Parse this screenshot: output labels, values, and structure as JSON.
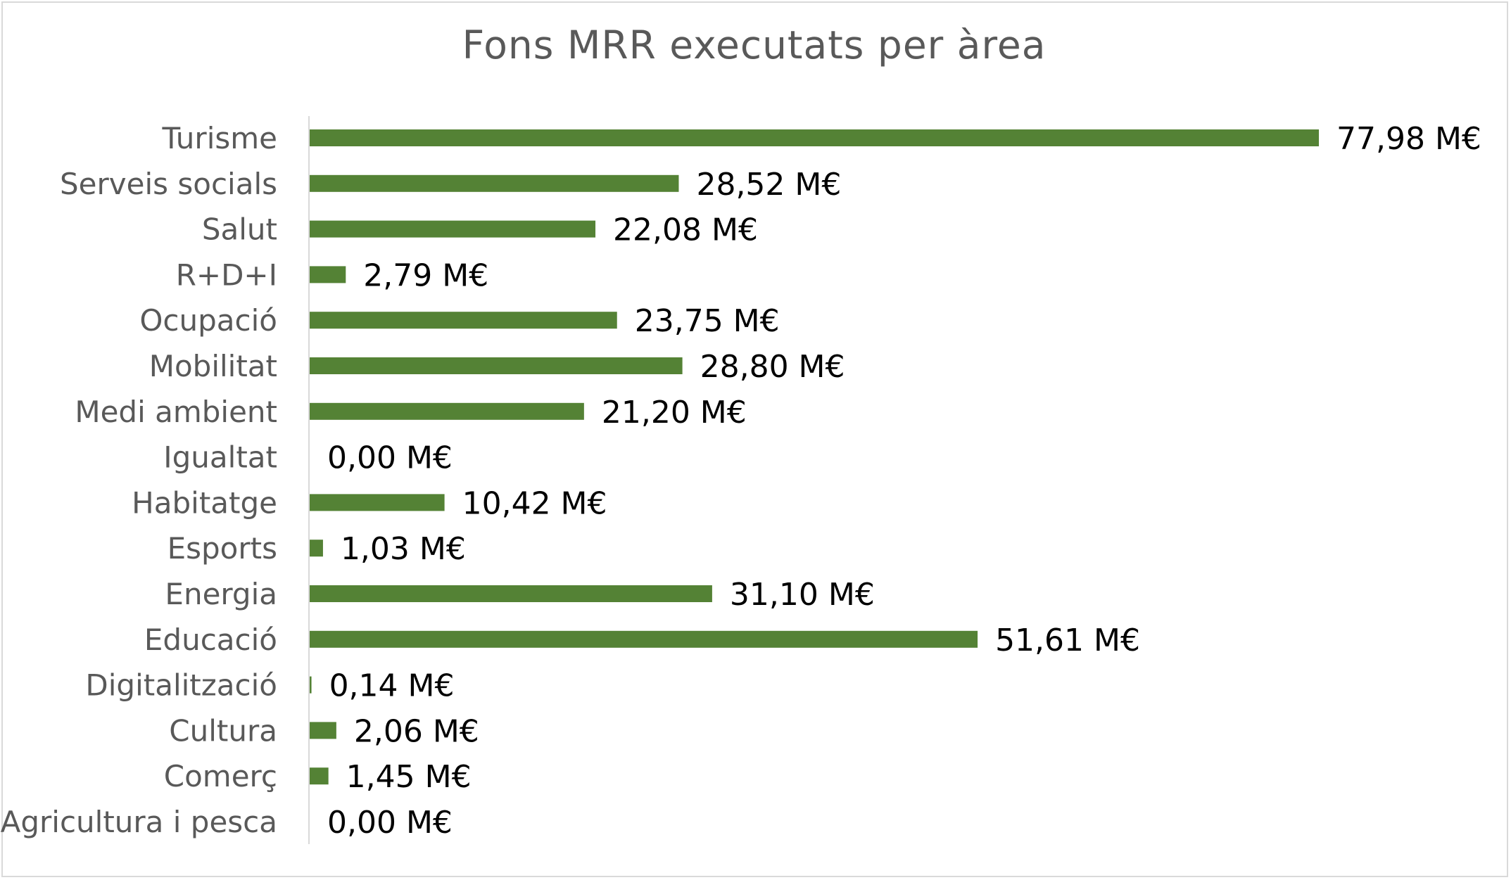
{
  "chart_data": {
    "type": "bar",
    "orientation": "horizontal",
    "title": "Fons MRR executats per àrea",
    "xlabel": "",
    "ylabel": "",
    "categories": [
      "Turisme",
      "Serveis socials",
      "Salut",
      "R+D+I",
      "Ocupació",
      "Mobilitat",
      "Medi ambient",
      "Igualtat",
      "Habitatge",
      "Esports",
      "Energia",
      "Educació",
      "Digitalització",
      "Cultura",
      "Comerç",
      "Agricultura i pesca"
    ],
    "values": [
      77.98,
      28.52,
      22.08,
      2.79,
      23.75,
      28.8,
      21.2,
      0.0,
      10.42,
      1.03,
      31.1,
      51.61,
      0.14,
      2.06,
      1.45,
      0.0
    ],
    "data_labels": [
      "77,98 M€",
      "28,52 M€",
      "22,08 M€",
      "2,79 M€",
      "23,75 M€",
      "28,80 M€",
      "21,20 M€",
      "0,00 M€",
      "10,42 M€",
      "1,03 M€",
      "31,10 M€",
      "51,61 M€",
      "0,14 M€",
      "2,06 M€",
      "1,45 M€",
      "0,00 M€"
    ],
    "xlim": [
      0,
      77.98
    ],
    "grid": false,
    "legend": "none",
    "bar_color": "#548235"
  }
}
